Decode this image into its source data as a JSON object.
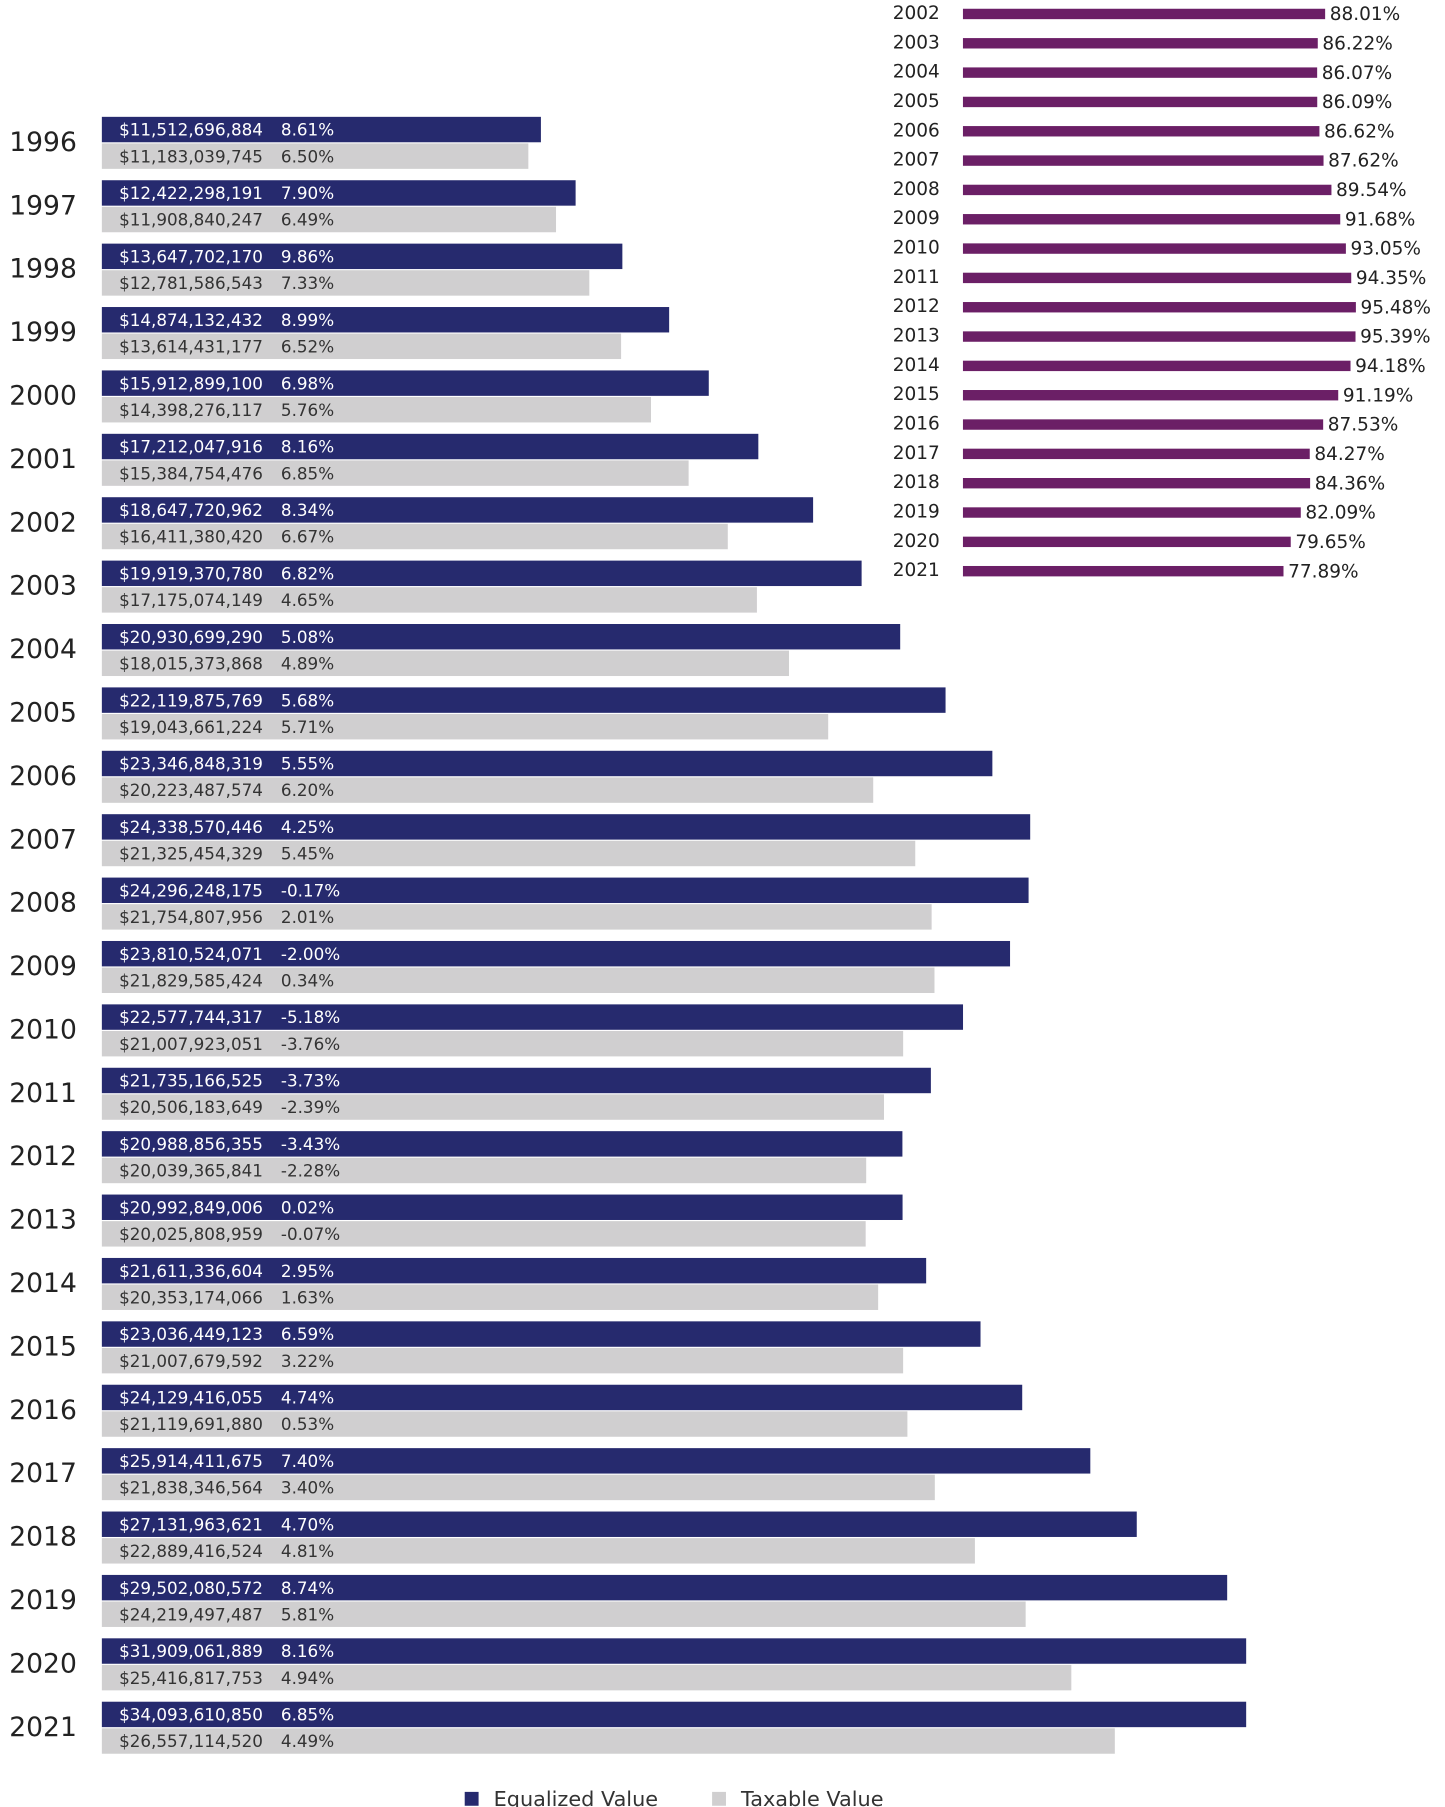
{
  "chart_data": [
    {
      "type": "hbar-grouped",
      "categories": [
        "1996",
        "1997",
        "1998",
        "1999",
        "2000",
        "2001",
        "2002",
        "2003",
        "2004",
        "2005",
        "2006",
        "2007",
        "2008",
        "2009",
        "2010",
        "2011",
        "2012",
        "2013",
        "2014",
        "2015",
        "2016",
        "2017",
        "2018",
        "2019",
        "2020",
        "2021"
      ],
      "xlim": [
        0,
        30000000000
      ],
      "legend": "bottom",
      "series": [
        {
          "name": "Equalized Value",
          "color": "#262a6e",
          "label_color": "#ffffff",
          "values": [
            11512696884,
            12422298191,
            13647702170,
            14874132432,
            15912899100,
            17212047916,
            18647720962,
            19919370780,
            20930699290,
            22119875769,
            23346848319,
            24338570446,
            24296248175,
            23810524071,
            22577744317,
            21735166525,
            20988856355,
            20992849006,
            21611336604,
            23036449123,
            24129416055,
            25914411675,
            27131963621,
            29502080572,
            31909061889,
            34093610850
          ],
          "value_labels": [
            "$11,512,696,884",
            "$12,422,298,191",
            "$13,647,702,170",
            "$14,874,132,432",
            "$15,912,899,100",
            "$17,212,047,916",
            "$18,647,720,962",
            "$19,919,370,780",
            "$20,930,699,290",
            "$22,119,875,769",
            "$23,346,848,319",
            "$24,338,570,446",
            "$24,296,248,175",
            "$23,810,524,071",
            "$22,577,744,317",
            "$21,735,166,525",
            "$20,988,856,355",
            "$20,992,849,006",
            "$21,611,336,604",
            "$23,036,449,123",
            "$24,129,416,055",
            "$25,914,411,675",
            "$27,131,963,621",
            "$29,502,080,572",
            "$31,909,061,889",
            "$34,093,610,850"
          ],
          "changes": [
            8.61,
            7.9,
            9.86,
            8.99,
            6.98,
            8.16,
            8.34,
            6.82,
            5.08,
            5.68,
            5.55,
            4.25,
            -0.17,
            -2.0,
            -5.18,
            -3.73,
            -3.43,
            0.02,
            2.95,
            6.59,
            4.74,
            7.4,
            4.7,
            8.74,
            8.16,
            6.85
          ],
          "change_labels": [
            "8.61%",
            "7.90%",
            "9.86%",
            "8.99%",
            "6.98%",
            "8.16%",
            "8.34%",
            "6.82%",
            "5.08%",
            "5.68%",
            "5.55%",
            "4.25%",
            "-0.17%",
            "-2.00%",
            "-5.18%",
            "-3.73%",
            "-3.43%",
            "0.02%",
            "2.95%",
            "6.59%",
            "4.74%",
            "7.40%",
            "4.70%",
            "8.74%",
            "8.16%",
            "6.85%"
          ]
        },
        {
          "name": "Taxable Value",
          "color": "#d0cfd0",
          "label_color": "#333333",
          "values": [
            11183039745,
            11908840247,
            12781586543,
            13614431177,
            14398276117,
            15384754476,
            16411380420,
            17175074149,
            18015373868,
            19043661224,
            20223487574,
            21325454329,
            21754807956,
            21829585424,
            21007923051,
            20506183649,
            20039365841,
            20025808959,
            20353174066,
            21007679592,
            21119691880,
            21838346564,
            22889416524,
            24219497487,
            25416817753,
            26557114520
          ],
          "value_labels": [
            "$11,183,039,745",
            "$11,908,840,247",
            "$12,781,586,543",
            "$13,614,431,177",
            "$14,398,276,117",
            "$15,384,754,476",
            "$16,411,380,420",
            "$17,175,074,149",
            "$18,015,373,868",
            "$19,043,661,224",
            "$20,223,487,574",
            "$21,325,454,329",
            "$21,754,807,956",
            "$21,829,585,424",
            "$21,007,923,051",
            "$20,506,183,649",
            "$20,039,365,841",
            "$20,025,808,959",
            "$20,353,174,066",
            "$21,007,679,592",
            "$21,119,691,880",
            "$21,838,346,564",
            "$22,889,416,524",
            "$24,219,497,487",
            "$25,416,817,753",
            "$26,557,114,520"
          ],
          "changes": [
            6.5,
            6.49,
            7.33,
            6.52,
            5.76,
            6.85,
            6.67,
            4.65,
            4.89,
            5.71,
            6.2,
            5.45,
            2.01,
            0.34,
            -3.76,
            -2.39,
            -2.28,
            -0.07,
            1.63,
            3.22,
            0.53,
            3.4,
            4.81,
            5.81,
            4.94,
            4.49
          ],
          "change_labels": [
            "6.50%",
            "6.49%",
            "7.33%",
            "6.52%",
            "5.76%",
            "6.85%",
            "6.67%",
            "4.65%",
            "4.89%",
            "5.71%",
            "6.20%",
            "5.45%",
            "2.01%",
            "0.34%",
            "-3.76%",
            "-2.39%",
            "-2.28%",
            "-0.07%",
            "1.63%",
            "3.22%",
            "0.53%",
            "3.40%",
            "4.81%",
            "5.81%",
            "4.94%",
            "4.49%"
          ]
        }
      ]
    },
    {
      "type": "hbar",
      "categories": [
        "2002",
        "2003",
        "2004",
        "2005",
        "2006",
        "2007",
        "2008",
        "2009",
        "2010",
        "2011",
        "2012",
        "2013",
        "2014",
        "2015",
        "2016",
        "2017",
        "2018",
        "2019",
        "2020",
        "2021"
      ],
      "xlim": [
        0,
        100
      ],
      "color": "#6b1f66",
      "values": [
        88.01,
        86.22,
        86.07,
        86.09,
        86.62,
        87.62,
        89.54,
        91.68,
        93.05,
        94.35,
        95.48,
        95.39,
        94.18,
        91.19,
        87.53,
        84.27,
        84.36,
        82.09,
        79.65,
        77.89
      ],
      "value_labels": [
        "88.01%",
        "86.22%",
        "86.07%",
        "86.09%",
        "86.62%",
        "87.62%",
        "89.54%",
        "91.68%",
        "93.05%",
        "94.35%",
        "95.48%",
        "95.39%",
        "94.18%",
        "91.19%",
        "87.53%",
        "84.27%",
        "84.36%",
        "82.09%",
        "79.65%",
        "77.89%"
      ]
    }
  ]
}
